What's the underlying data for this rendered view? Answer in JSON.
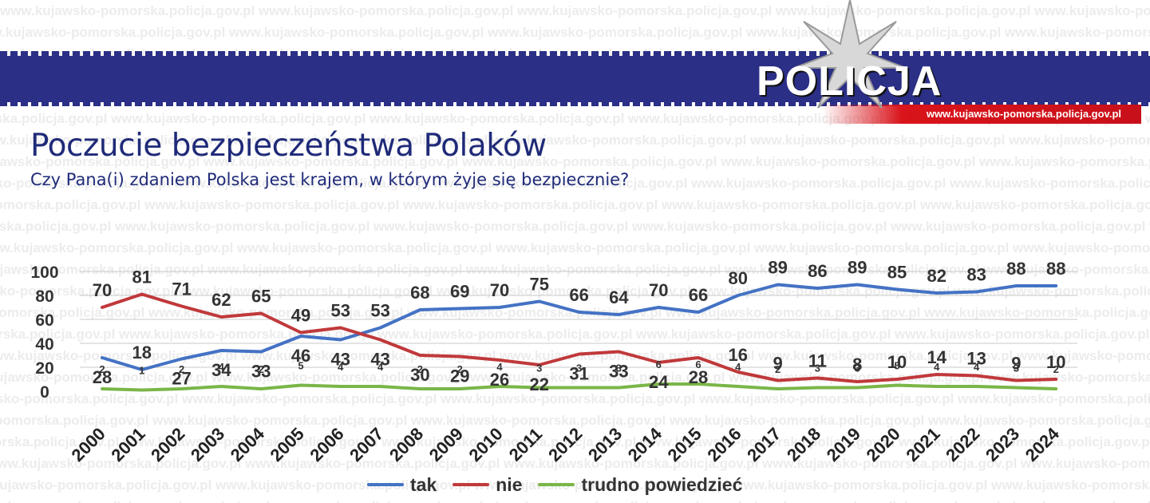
{
  "page": {
    "watermark_text": "www.kujawsko-pomorska.policja.gov.pl",
    "header": {
      "logo_text": "POLICJA",
      "url": "www.kujawsko-pomorska.policja.gov.pl",
      "colors": {
        "band": "#2b2f86",
        "accent": "#d9141b"
      }
    },
    "title": "Poczucie bezpieczeństwa Polaków",
    "subtitle": "Czy Pana(i) zdaniem Polska jest krajem, w którym żyje się bezpiecznie?"
  },
  "chart_data": {
    "type": "line",
    "title": "Poczucie bezpieczeństwa Polaków",
    "subtitle": "Czy Pana(i) zdaniem Polska jest krajem, w którym żyje się bezpiecznie?",
    "categories": [
      "2000",
      "2001",
      "2002",
      "2003",
      "2004",
      "2005",
      "2006",
      "2007",
      "2008",
      "2009",
      "2010",
      "2011",
      "2012",
      "2013",
      "2014",
      "2015",
      "2016",
      "2017",
      "2018",
      "2019",
      "2020",
      "2021",
      "2022",
      "2023",
      "2024"
    ],
    "y_ticks": [
      0,
      20,
      40,
      60,
      80,
      100
    ],
    "ylim": [
      0,
      100
    ],
    "grid": true,
    "legend_position": "bottom",
    "series": [
      {
        "name": "tak",
        "color": "#4472c4",
        "values": [
          28,
          18,
          27,
          34,
          33,
          46,
          43,
          53,
          68,
          69,
          70,
          75,
          66,
          64,
          70,
          66,
          80,
          89,
          86,
          89,
          85,
          82,
          83,
          88,
          88
        ]
      },
      {
        "name": "nie",
        "color": "#c0393b",
        "values": [
          70,
          81,
          71,
          62,
          65,
          49,
          53,
          43,
          30,
          29,
          26,
          22,
          31,
          33,
          24,
          28,
          16,
          9,
          11,
          8,
          10,
          14,
          13,
          9,
          10
        ]
      },
      {
        "name": "trudno powiedzieć",
        "color": "#7ab648",
        "values": [
          2,
          1,
          2,
          4,
          2,
          5,
          4,
          4,
          2,
          2,
          4,
          3,
          3,
          3,
          6,
          6,
          4,
          2,
          3,
          3,
          5,
          4,
          4,
          3,
          2
        ]
      }
    ]
  }
}
